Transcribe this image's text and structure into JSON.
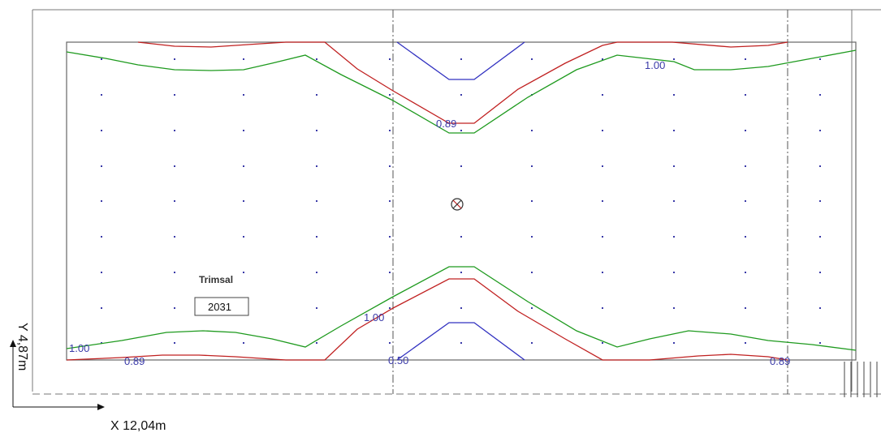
{
  "room": {
    "name": "Trimsal",
    "id": "2031"
  },
  "axes": {
    "x_label": "X 12,04m",
    "y_label": "Y 4,87m"
  },
  "contour_labels": [
    {
      "text": "1.00",
      "color": "green"
    },
    {
      "text": "0.89",
      "color": "red"
    },
    {
      "text": "1.00",
      "color": "green"
    },
    {
      "text": "0.89",
      "color": "red"
    },
    {
      "text": "0.50",
      "color": "blue"
    },
    {
      "text": "0.89",
      "color": "red"
    },
    {
      "text": "1.00",
      "color": "green"
    }
  ],
  "colors": {
    "contour_0_50": "#3030c0",
    "contour_0_89": "#c02020",
    "contour_1_00": "#1e9a1e",
    "frame": "#555555",
    "grid_dot": "#3a3aa8"
  }
}
